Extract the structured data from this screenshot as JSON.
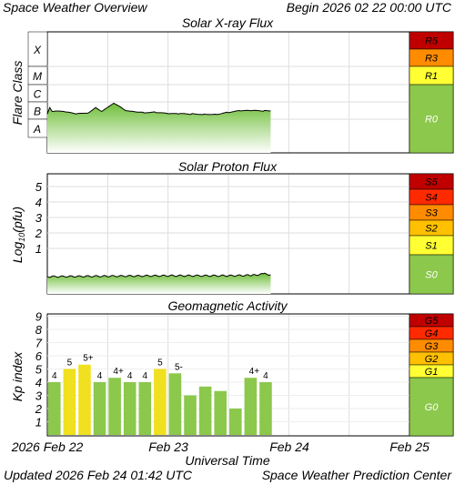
{
  "header": {
    "title": "Space Weather Overview",
    "begin": "Begin 2026 02 22 00:00 UTC"
  },
  "footer": {
    "updated": "Updated 2026 Feb 24 01:42 UTC",
    "credit": "Space Weather Prediction Center"
  },
  "colors": {
    "r_green": "#8cc84b",
    "kp_bar_green": "#8cc84b",
    "kp_bar_yellow": "#f0e020",
    "scale_R5": "#c00000",
    "scale_R4": "#ff2a00",
    "scale_R3": "#ff8c00",
    "scale_R2": "#ffc000",
    "scale_R1": "#ffff33"
  },
  "chart_data": [
    {
      "type": "area",
      "title": "Solar X-ray Flux",
      "ylabel": "Flare Class",
      "y_ticks": [
        "X",
        "M",
        "C",
        "B",
        "A"
      ],
      "x_ticks": [
        "2026 Feb 22",
        "Feb 23",
        "Feb 24",
        "Feb 25"
      ],
      "x_range_days": [
        0,
        3
      ],
      "data_end_day": 1.85,
      "series_approx": {
        "x_days": [
          0.0,
          0.02,
          0.04,
          0.08,
          0.15,
          0.25,
          0.35,
          0.4,
          0.45,
          0.5,
          0.55,
          0.6,
          0.65,
          0.7,
          0.8,
          0.9,
          1.0,
          1.1,
          1.2,
          1.3,
          1.4,
          1.5,
          1.6,
          1.7,
          1.8,
          1.85
        ],
        "level": [
          "B2",
          "B5",
          "B3",
          "B3",
          "B2.5",
          "B2",
          "B2.5",
          "B5",
          "B3",
          "B5",
          "B8",
          "B5",
          "B3",
          "B3",
          "B2.5",
          "B2.5",
          "B2",
          "B2",
          "B2",
          "B2",
          "B2",
          "B2.5",
          "B3",
          "B3",
          "B3",
          "B3"
        ]
      },
      "scale": [
        {
          "label": "R5",
          "color": "#c00000"
        },
        {
          "label": "R3",
          "color": "#ff8c00"
        },
        {
          "label": "R1",
          "color": "#ffff33"
        },
        {
          "label": "R0",
          "color": "#8cc84b"
        }
      ]
    },
    {
      "type": "area",
      "title": "Solar Proton Flux",
      "ylabel": "Log10(pfu)",
      "ylabel_main": "Log",
      "ylabel_sub": "10",
      "ylabel_rest": "(pfu)",
      "y_ticks": [
        "5",
        "4",
        "3",
        "2",
        "1"
      ],
      "ylim": [
        -1,
        6
      ],
      "x_ticks": [
        "2026 Feb 22",
        "Feb 23",
        "Feb 24",
        "Feb 25"
      ],
      "data_end_day": 1.85,
      "series_approx": {
        "x_days": [
          0.0,
          0.5,
          1.0,
          1.5,
          1.7,
          1.8,
          1.85
        ],
        "log_pfu": [
          -0.4,
          -0.35,
          -0.3,
          -0.3,
          -0.25,
          -0.1,
          -0.2
        ]
      },
      "scale": [
        {
          "label": "S5",
          "color": "#c00000"
        },
        {
          "label": "S4",
          "color": "#ff2a00"
        },
        {
          "label": "S3",
          "color": "#ff8c00"
        },
        {
          "label": "S2",
          "color": "#ffc000"
        },
        {
          "label": "S1",
          "color": "#ffff33"
        },
        {
          "label": "S0",
          "color": "#8cc84b"
        }
      ]
    },
    {
      "type": "bar",
      "title": "Geomagnetic Activity",
      "ylabel": "Kp index",
      "xlabel": "Universal Time",
      "ylim": [
        0,
        10
      ],
      "y_ticks": [
        "9",
        "8",
        "7",
        "6",
        "5",
        "4",
        "3",
        "2",
        "1"
      ],
      "x_ticks": [
        "2026 Feb 22",
        "Feb 23",
        "Feb 24",
        "Feb 25"
      ],
      "bars": [
        {
          "value": 4.0,
          "label": "4"
        },
        {
          "value": 5.0,
          "label": "5"
        },
        {
          "value": 5.33,
          "label": "5+"
        },
        {
          "value": 4.0,
          "label": "4"
        },
        {
          "value": 4.33,
          "label": "4+"
        },
        {
          "value": 4.0,
          "label": "4"
        },
        {
          "value": 4.0,
          "label": "4"
        },
        {
          "value": 5.0,
          "label": "5"
        },
        {
          "value": 4.67,
          "label": "5-"
        },
        {
          "value": 3.0,
          "label": ""
        },
        {
          "value": 3.67,
          "label": ""
        },
        {
          "value": 3.33,
          "label": ""
        },
        {
          "value": 2.0,
          "label": ""
        },
        {
          "value": 4.33,
          "label": "4+"
        },
        {
          "value": 4.0,
          "label": "4"
        }
      ],
      "scale": [
        {
          "label": "G5",
          "color": "#c00000"
        },
        {
          "label": "G4",
          "color": "#ff2a00"
        },
        {
          "label": "G3",
          "color": "#ff8c00"
        },
        {
          "label": "G2",
          "color": "#ffc000"
        },
        {
          "label": "G1",
          "color": "#ffff33"
        },
        {
          "label": "G0",
          "color": "#8cc84b"
        }
      ]
    }
  ]
}
